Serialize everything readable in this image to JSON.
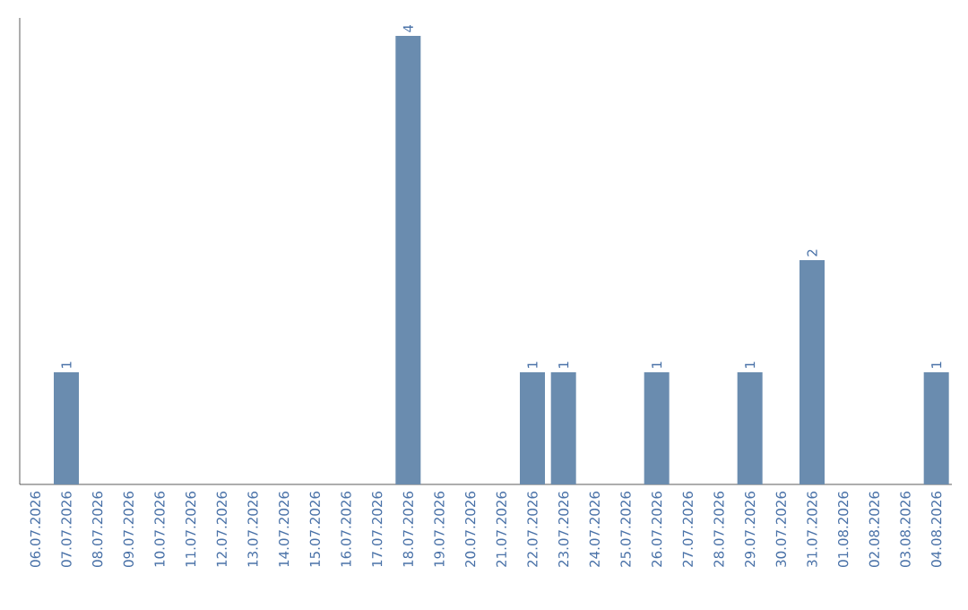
{
  "chart_data": {
    "type": "bar",
    "categories": [
      "06.07.2026",
      "07.07.2026",
      "08.07.2026",
      "09.07.2026",
      "10.07.2026",
      "11.07.2026",
      "12.07.2026",
      "13.07.2026",
      "14.07.2026",
      "15.07.2026",
      "16.07.2026",
      "17.07.2026",
      "18.07.2026",
      "19.07.2026",
      "20.07.2026",
      "21.07.2026",
      "22.07.2026",
      "23.07.2026",
      "24.07.2026",
      "25.07.2026",
      "26.07.2026",
      "27.07.2026",
      "28.07.2026",
      "29.07.2026",
      "30.07.2026",
      "31.07.2026",
      "01.08.2026",
      "02.08.2026",
      "03.08.2026",
      "04.08.2026"
    ],
    "values": [
      0,
      1,
      0,
      0,
      0,
      0,
      0,
      0,
      0,
      0,
      0,
      0,
      4,
      0,
      0,
      0,
      1,
      1,
      0,
      0,
      1,
      0,
      0,
      1,
      0,
      2,
      0,
      0,
      0,
      1
    ],
    "value_labels": [
      null,
      "1",
      null,
      null,
      null,
      null,
      null,
      null,
      null,
      null,
      null,
      null,
      "4",
      null,
      null,
      null,
      "1",
      "1",
      null,
      null,
      "1",
      null,
      null,
      "1",
      null,
      "2",
      null,
      null,
      null,
      "1"
    ],
    "color": "#6a8caf"
  }
}
